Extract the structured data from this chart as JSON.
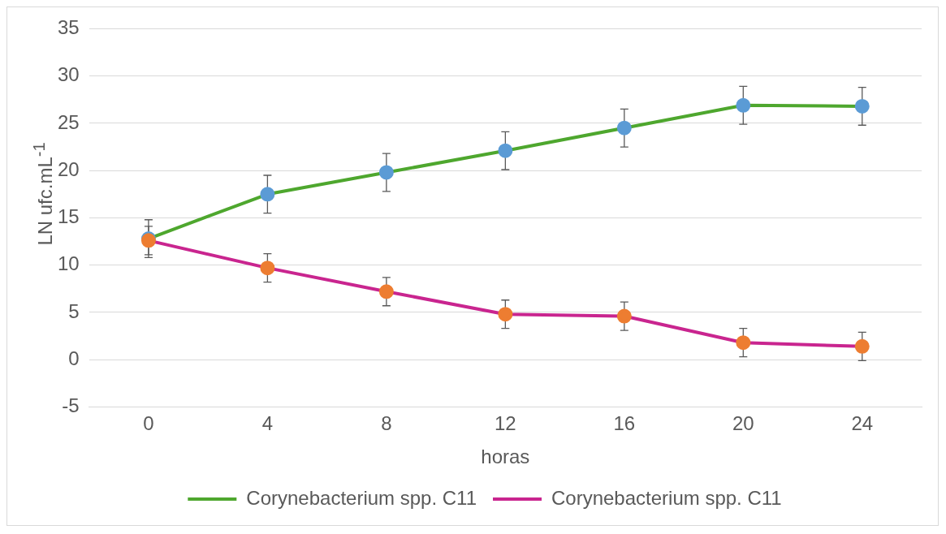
{
  "chart_data": {
    "type": "line",
    "xlabel": "horas",
    "ylabel": "LN ufc.mL$^{-1}$",
    "categories": [
      "0",
      "4",
      "8",
      "12",
      "16",
      "20",
      "24"
    ],
    "series": [
      {
        "name": "Corynebacterium spp. C11",
        "color": "#4ea72e",
        "colors": [
          "#5b9bd5",
          "#5b9bd5",
          "#5b9bd5",
          "#5b9bd5",
          "#5b9bd5",
          "#5b9bd5",
          "#5b9bd5"
        ],
        "values": [
          12.8,
          17.5,
          19.8,
          22.1,
          24.5,
          26.9,
          26.8
        ],
        "errors": [
          2,
          2,
          2,
          2,
          2,
          2,
          2
        ]
      },
      {
        "name": "Corynebacterium spp. C11",
        "color": "#c9258f",
        "colors": [
          "#ed7d31",
          "#ed7d31",
          "#ed7d31",
          "#ed7d31",
          "#ed7d31",
          "#ed7d31",
          "#ed7d31"
        ],
        "values": [
          12.6,
          9.7,
          7.2,
          4.8,
          4.6,
          1.8,
          1.4
        ],
        "errors": [
          1.5,
          1.5,
          1.5,
          1.5,
          1.5,
          1.5,
          1.5
        ]
      }
    ],
    "ylim": [
      -5,
      35
    ],
    "yticks": [
      -5,
      0,
      5,
      10,
      15,
      20,
      25,
      30,
      35
    ],
    "grid": "y",
    "legend": "bottom",
    "marker": "circle",
    "line_style": "solid"
  }
}
